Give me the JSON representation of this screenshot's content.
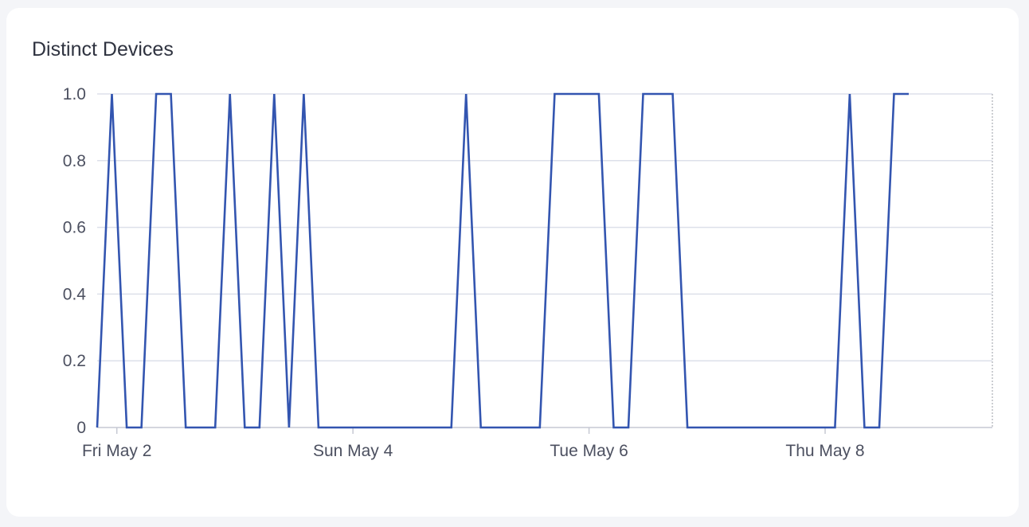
{
  "chart_data": {
    "type": "line",
    "title": "Distinct Devices",
    "xlabel": "",
    "ylabel": "",
    "ylim": [
      0,
      1
    ],
    "y_ticks": [
      "0",
      "0.2",
      "0.4",
      "0.6",
      "0.8",
      "1.0"
    ],
    "y_tick_values": [
      0,
      0.2,
      0.4,
      0.6,
      0.8,
      1.0
    ],
    "x_ticks": [
      "Fri May 2",
      "Sun May 4",
      "Tue May 6",
      "Thu May 8"
    ],
    "x_tick_hours": [
      0,
      48,
      96,
      144
    ],
    "xlim_hours": [
      -4,
      178
    ],
    "grid": true,
    "colors": {
      "line": "#3355b0",
      "grid": "#dde0ea",
      "axis": "#c6c9d3"
    },
    "series": [
      {
        "values_x_hours": [
          -4,
          -1,
          2,
          5,
          8,
          11,
          14,
          17,
          20,
          23,
          26,
          29,
          32,
          35,
          38,
          41,
          44,
          47,
          50,
          53,
          56,
          59,
          62,
          65,
          68,
          71,
          74,
          77,
          80,
          83,
          86,
          89,
          92,
          95,
          98,
          101,
          104,
          107,
          110,
          113,
          116,
          119,
          122,
          125,
          128,
          131,
          134,
          137,
          140,
          143,
          146,
          149,
          152,
          155,
          158,
          161
        ],
        "values": [
          0,
          1,
          0,
          0,
          1,
          1,
          0,
          0,
          0,
          1,
          0,
          0,
          1,
          0,
          1,
          0,
          0,
          0,
          0,
          0,
          0,
          0,
          0,
          0,
          0,
          1,
          0,
          0,
          0,
          0,
          0,
          1,
          1,
          1,
          1,
          0,
          0,
          1,
          1,
          1,
          0,
          0,
          0,
          0,
          0,
          0,
          0,
          0,
          0,
          0,
          0,
          1,
          0,
          0,
          1,
          1
        ]
      }
    ]
  }
}
